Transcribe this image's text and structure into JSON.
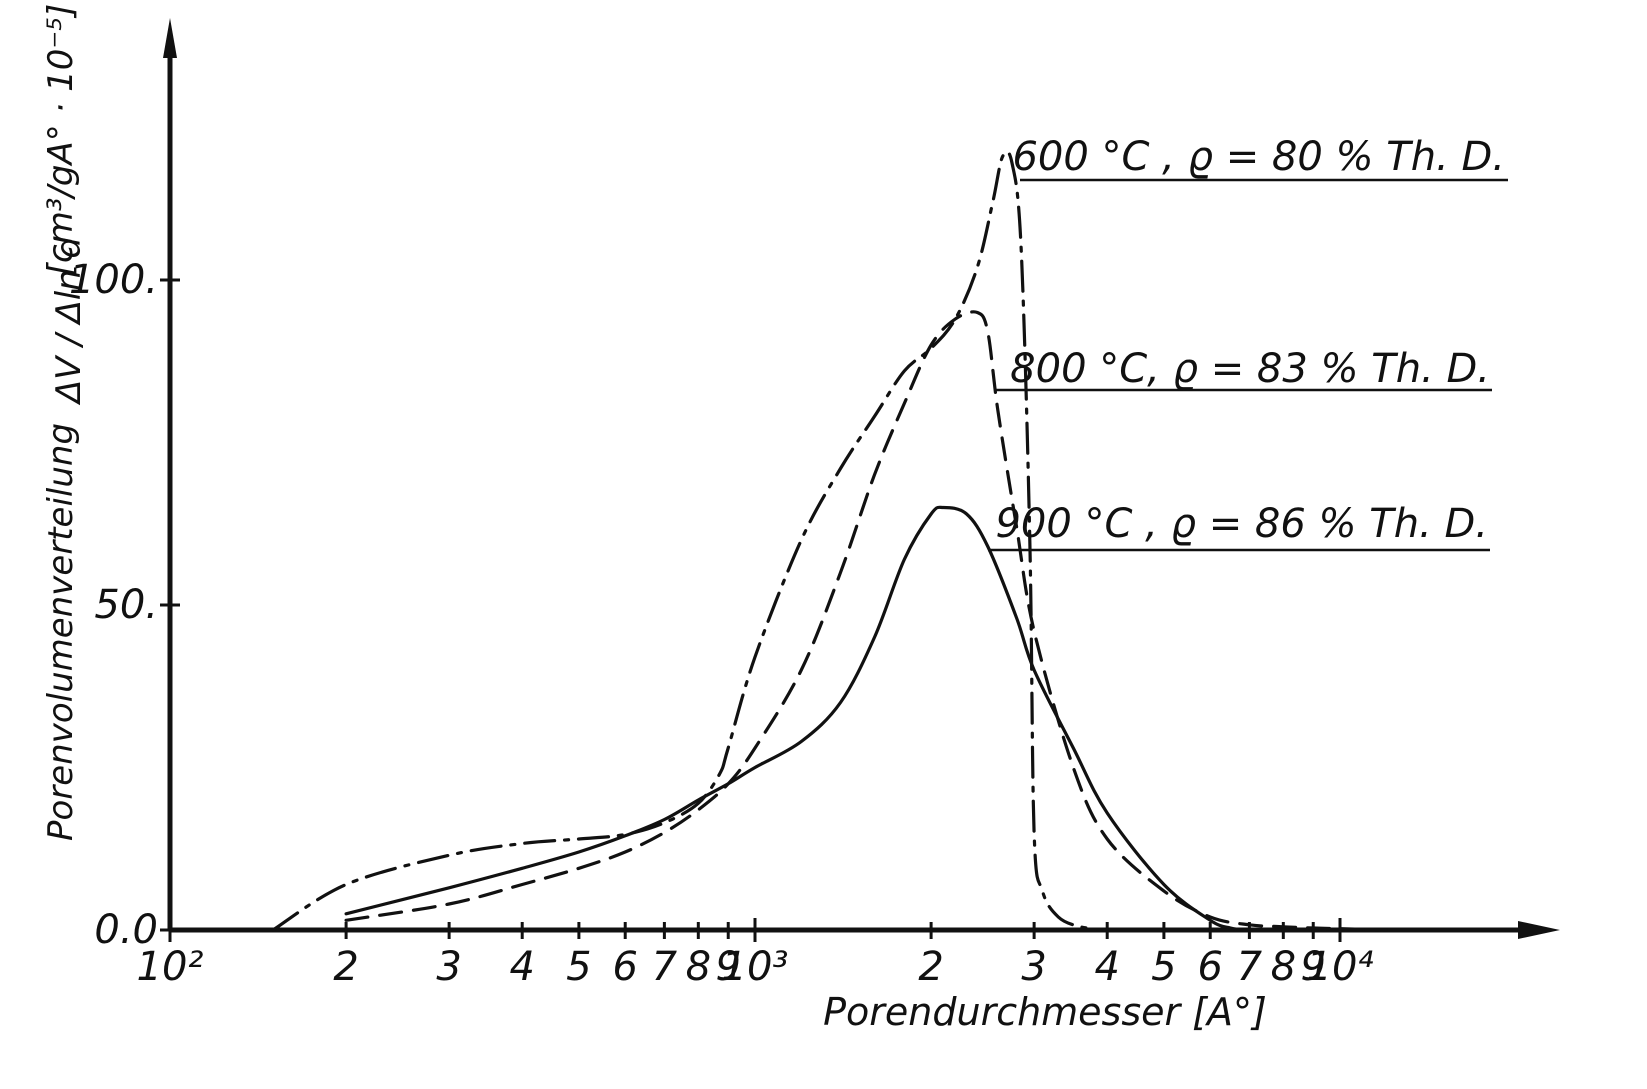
{
  "chart_data": {
    "type": "line",
    "xscale": "log",
    "xlabel": "Porendurchmesser [A°]",
    "ylabel": "Porenvolumenverteilung",
    "ylabel_symbol": "ΔV / Δln d",
    "ylabel_units": "[cm³/gA° · 10⁻⁵]",
    "xlim": [
      100,
      20000
    ],
    "ylim": [
      0,
      120
    ],
    "x_ticks": [
      {
        "value": 100,
        "label": "10²"
      },
      {
        "value": 200,
        "label": "2"
      },
      {
        "value": 300,
        "label": "3"
      },
      {
        "value": 400,
        "label": "4"
      },
      {
        "value": 500,
        "label": "5"
      },
      {
        "value": 600,
        "label": "6"
      },
      {
        "value": 700,
        "label": "7"
      },
      {
        "value": 800,
        "label": "8"
      },
      {
        "value": 900,
        "label": "9"
      },
      {
        "value": 1000,
        "label": "10³"
      },
      {
        "value": 2000,
        "label": "2"
      },
      {
        "value": 3000,
        "label": "3"
      },
      {
        "value": 4000,
        "label": "4"
      },
      {
        "value": 5000,
        "label": "5"
      },
      {
        "value": 6000,
        "label": "6"
      },
      {
        "value": 7000,
        "label": "7"
      },
      {
        "value": 8000,
        "label": "8"
      },
      {
        "value": 9000,
        "label": "9"
      },
      {
        "value": 10000,
        "label": "10⁴"
      }
    ],
    "y_ticks": [
      {
        "value": 0,
        "label": "0.0"
      },
      {
        "value": 50,
        "label": "50."
      },
      {
        "value": 100,
        "label": "100."
      }
    ],
    "grid": false,
    "legend_placement": "right, next to curves",
    "series": [
      {
        "name": "600 °C ,  ϱ = 80 % Th. D.",
        "style": "dash-dot",
        "points": [
          [
            150,
            0
          ],
          [
            200,
            7
          ],
          [
            300,
            11.5
          ],
          [
            400,
            13.3
          ],
          [
            500,
            14
          ],
          [
            600,
            14.7
          ],
          [
            700,
            16.5
          ],
          [
            800,
            19.5
          ],
          [
            870,
            24
          ],
          [
            900,
            28
          ],
          [
            1000,
            42
          ],
          [
            1200,
            60
          ],
          [
            1400,
            71
          ],
          [
            1600,
            79
          ],
          [
            1800,
            86
          ],
          [
            2000,
            89.5
          ],
          [
            2200,
            94
          ],
          [
            2400,
            102
          ],
          [
            2550,
            112
          ],
          [
            2650,
            119
          ],
          [
            2750,
            118
          ],
          [
            2850,
            105
          ],
          [
            2950,
            60
          ],
          [
            3000,
            15
          ],
          [
            3100,
            6
          ],
          [
            3300,
            2
          ],
          [
            3600,
            0.5
          ],
          [
            4000,
            0
          ]
        ]
      },
      {
        "name": "800 °C, ϱ = 83 % Th. D.",
        "style": "dashed",
        "points": [
          [
            200,
            1.5
          ],
          [
            300,
            4
          ],
          [
            400,
            7
          ],
          [
            500,
            9.5
          ],
          [
            600,
            12
          ],
          [
            700,
            15
          ],
          [
            800,
            18.5
          ],
          [
            900,
            22.5
          ],
          [
            1000,
            28
          ],
          [
            1200,
            40
          ],
          [
            1400,
            55
          ],
          [
            1600,
            70
          ],
          [
            1800,
            81
          ],
          [
            2000,
            90
          ],
          [
            2200,
            94
          ],
          [
            2400,
            95
          ],
          [
            2500,
            92
          ],
          [
            2600,
            80
          ],
          [
            2800,
            62
          ],
          [
            3000,
            46
          ],
          [
            3500,
            25
          ],
          [
            4000,
            14
          ],
          [
            5000,
            6
          ],
          [
            6000,
            2
          ],
          [
            7000,
            0.8
          ],
          [
            8000,
            0.5
          ],
          [
            9000,
            0.3
          ],
          [
            10000,
            0.2
          ],
          [
            11000,
            0.1
          ],
          [
            12000,
            0
          ]
        ]
      },
      {
        "name": "900 °C , ϱ = 86 % Th. D.",
        "style": "solid",
        "points": [
          [
            200,
            2.5
          ],
          [
            300,
            6.5
          ],
          [
            400,
            9.5
          ],
          [
            500,
            12
          ],
          [
            600,
            14.5
          ],
          [
            700,
            17
          ],
          [
            800,
            20
          ],
          [
            900,
            22.5
          ],
          [
            1000,
            25
          ],
          [
            1200,
            29
          ],
          [
            1400,
            35
          ],
          [
            1600,
            45
          ],
          [
            1800,
            57
          ],
          [
            2000,
            64
          ],
          [
            2100,
            65
          ],
          [
            2300,
            64
          ],
          [
            2500,
            59
          ],
          [
            2800,
            48
          ],
          [
            3000,
            40
          ],
          [
            3500,
            28
          ],
          [
            4000,
            18
          ],
          [
            5000,
            7
          ],
          [
            6000,
            1.5
          ],
          [
            6500,
            0.3
          ],
          [
            7000,
            0
          ]
        ]
      }
    ]
  }
}
